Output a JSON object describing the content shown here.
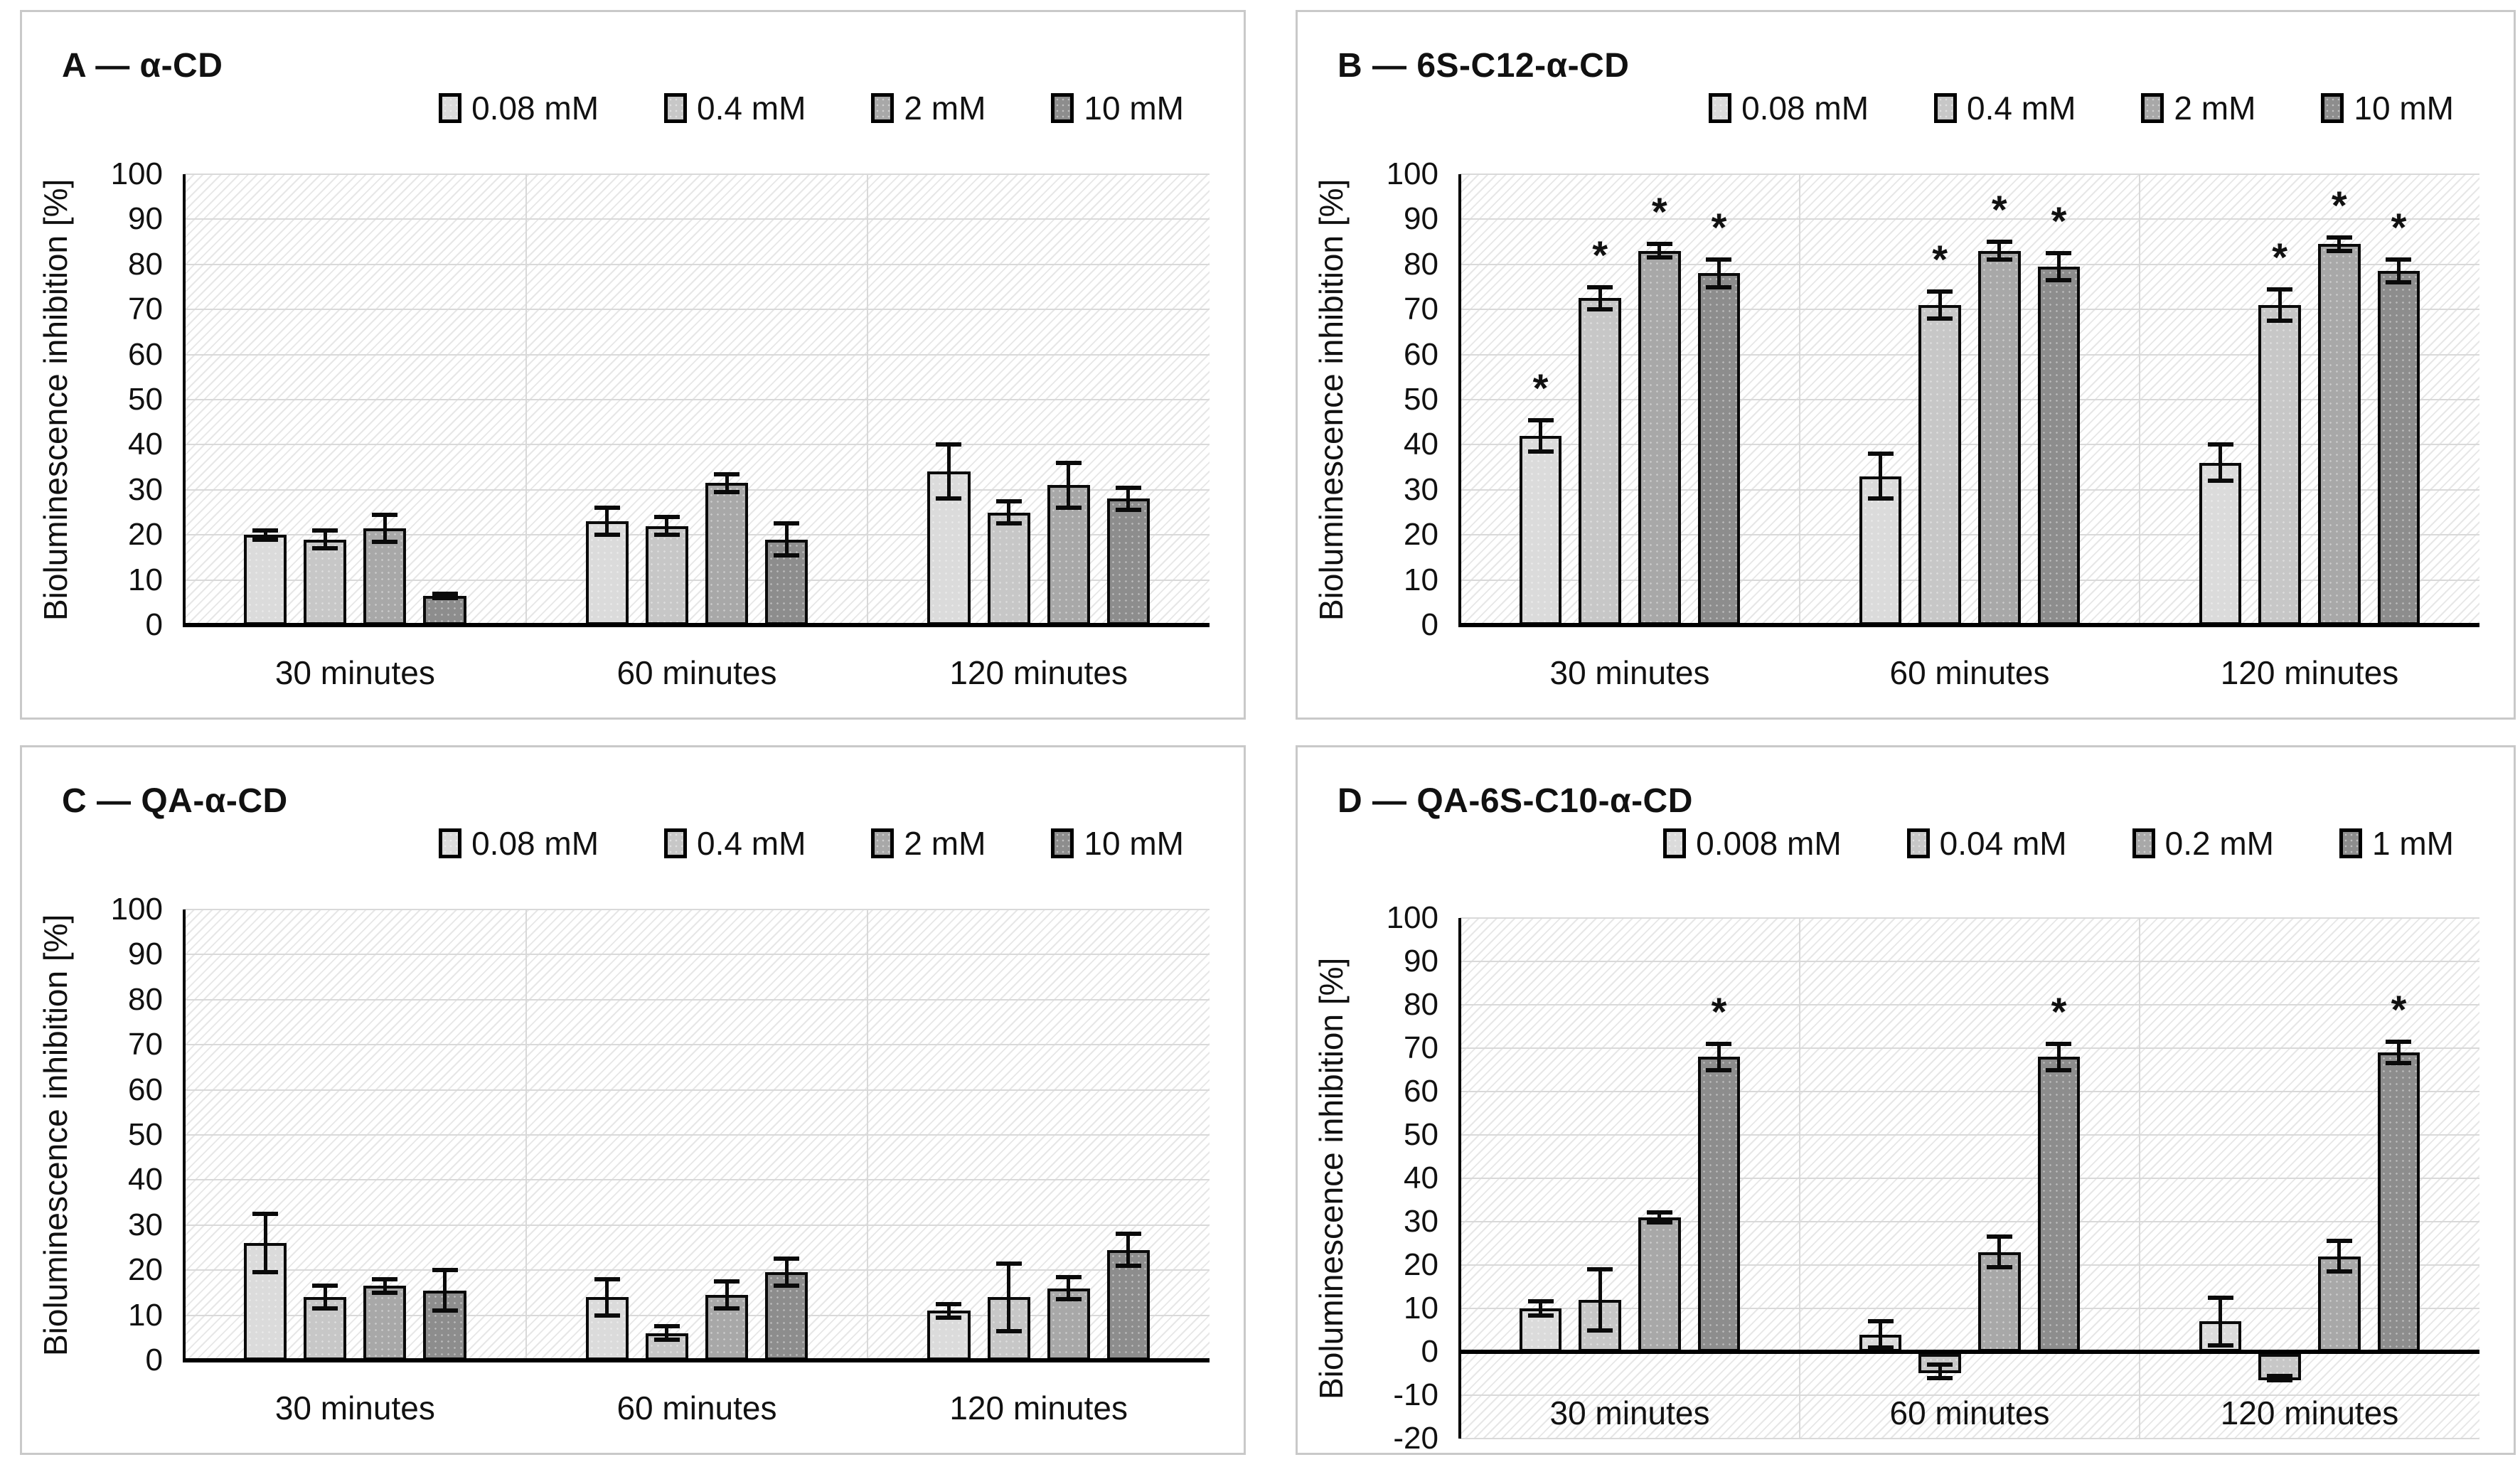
{
  "figure": {
    "background": "#ffffff"
  },
  "style": {
    "series_colors": [
      "#dbdbdb",
      "#c7c7c7",
      "#a8a8a8",
      "#8d8d8d"
    ],
    "axis_color": "#000000",
    "grid_color": "#d9d9d9",
    "panel_border_color": "#c9c9c9",
    "bar_outline_color": "#0a0a0a",
    "significance_marker": "*"
  },
  "chart_data": [
    {
      "type": "bar",
      "panel": "A",
      "title": "A — α-CD",
      "ylabel": "Bioluminescence inhibition [%]",
      "ylim": [
        0,
        100
      ],
      "ytick_step": 10,
      "grid": true,
      "legend_position": "top",
      "categories": [
        "30 minutes",
        "60 minutes",
        "120 minutes"
      ],
      "series": [
        {
          "name": "0.08 mM",
          "values": [
            20,
            23,
            34
          ],
          "errors": [
            1,
            3,
            6
          ],
          "stars": [
            false,
            false,
            false
          ]
        },
        {
          "name": "0.4 mM",
          "values": [
            19,
            22,
            25
          ],
          "errors": [
            2,
            2,
            2.5
          ],
          "stars": [
            false,
            false,
            false
          ]
        },
        {
          "name": "2 mM",
          "values": [
            21.5,
            31.5,
            31
          ],
          "errors": [
            3,
            2,
            5
          ],
          "stars": [
            false,
            false,
            false
          ]
        },
        {
          "name": "10 mM",
          "values": [
            6.5,
            19,
            28
          ],
          "errors": [
            0.5,
            3.5,
            2.5
          ],
          "stars": [
            false,
            false,
            false
          ]
        }
      ]
    },
    {
      "type": "bar",
      "panel": "B",
      "title": "B — 6S-C12-α-CD",
      "ylabel": "Bioluminescence inhibition [%]",
      "ylim": [
        0,
        100
      ],
      "ytick_step": 10,
      "grid": true,
      "legend_position": "top",
      "categories": [
        "30 minutes",
        "60 minutes",
        "120 minutes"
      ],
      "series": [
        {
          "name": "0.08 mM",
          "values": [
            42,
            33,
            36
          ],
          "errors": [
            3.5,
            5,
            4
          ],
          "stars": [
            true,
            false,
            false
          ]
        },
        {
          "name": "0.4 mM",
          "values": [
            72.5,
            71,
            71
          ],
          "errors": [
            2.5,
            3,
            3.5
          ],
          "stars": [
            true,
            true,
            true
          ]
        },
        {
          "name": "2 mM",
          "values": [
            83,
            83,
            84.5
          ],
          "errors": [
            1.5,
            2,
            1.5
          ],
          "stars": [
            true,
            true,
            true
          ]
        },
        {
          "name": "10 mM",
          "values": [
            78,
            79.5,
            78.5
          ],
          "errors": [
            3,
            3,
            2.5
          ],
          "stars": [
            true,
            true,
            true
          ]
        }
      ]
    },
    {
      "type": "bar",
      "panel": "C",
      "title": "C — QA-α-CD",
      "ylabel": "Bioluminescence inhibition [%]",
      "ylim": [
        0,
        100
      ],
      "ytick_step": 10,
      "grid": true,
      "legend_position": "top",
      "categories": [
        "30 minutes",
        "60 minutes",
        "120 minutes"
      ],
      "series": [
        {
          "name": "0.08 mM",
          "values": [
            26,
            14,
            11
          ],
          "errors": [
            6.5,
            4,
            1.5
          ],
          "stars": [
            false,
            false,
            false
          ]
        },
        {
          "name": "0.4 mM",
          "values": [
            14,
            6,
            14
          ],
          "errors": [
            2.5,
            1.5,
            7.5
          ],
          "stars": [
            false,
            false,
            false
          ]
        },
        {
          "name": "2 mM",
          "values": [
            16.5,
            14.5,
            16
          ],
          "errors": [
            1.5,
            3,
            2.5
          ],
          "stars": [
            false,
            false,
            false
          ]
        },
        {
          "name": "10 mM",
          "values": [
            15.5,
            19.5,
            24.5
          ],
          "errors": [
            4.5,
            3,
            3.5
          ],
          "stars": [
            false,
            false,
            false
          ]
        }
      ]
    },
    {
      "type": "bar",
      "panel": "D",
      "title": "D — QA-6S-C10-α-CD",
      "ylabel": "Bioluminescence inhibition [%]",
      "ylim": [
        -20,
        100
      ],
      "ytick_step": 10,
      "grid": true,
      "legend_position": "top",
      "x_labels_inside_at": -14,
      "categories": [
        "30 minutes",
        "60 minutes",
        "120 minutes"
      ],
      "series": [
        {
          "name": "0.008 mM",
          "values": [
            10,
            4,
            7
          ],
          "errors": [
            1.7,
            3,
            5.5
          ],
          "stars": [
            false,
            false,
            false
          ]
        },
        {
          "name": "0.04 mM",
          "values": [
            12,
            -4.5,
            -6
          ],
          "errors": [
            7,
            1.5,
            0.5
          ],
          "stars": [
            false,
            false,
            false
          ]
        },
        {
          "name": "0.2 mM",
          "values": [
            31,
            23,
            22
          ],
          "errors": [
            1.2,
            3.5,
            3.5
          ],
          "stars": [
            false,
            false,
            false
          ]
        },
        {
          "name": "1 mM",
          "values": [
            68,
            68,
            69
          ],
          "errors": [
            3,
            3,
            2.5
          ],
          "stars": [
            true,
            true,
            true
          ]
        }
      ]
    }
  ]
}
